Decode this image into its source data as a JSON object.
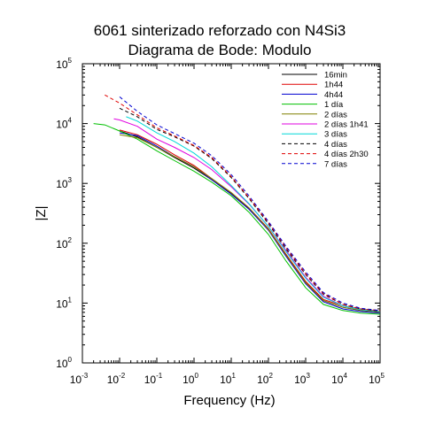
{
  "chart_data": {
    "type": "line",
    "title": "6061 sinterizado reforzado con N4Si3",
    "subtitle": "Diagrama de Bode: Modulo",
    "xlabel": "Frequency (Hz)",
    "ylabel": "|Z|",
    "xscale": "log",
    "yscale": "log",
    "xlim": [
      0.001,
      100000
    ],
    "ylim": [
      1,
      100000
    ],
    "x_ticks": [
      {
        "base": "10",
        "exp": "-3"
      },
      {
        "base": "10",
        "exp": "-2"
      },
      {
        "base": "10",
        "exp": "-1"
      },
      {
        "base": "10",
        "exp": "0"
      },
      {
        "base": "10",
        "exp": "1"
      },
      {
        "base": "10",
        "exp": "2"
      },
      {
        "base": "10",
        "exp": "3"
      },
      {
        "base": "10",
        "exp": "4"
      },
      {
        "base": "10",
        "exp": "5"
      }
    ],
    "y_ticks": [
      {
        "base": "10",
        "exp": "0"
      },
      {
        "base": "10",
        "exp": "1"
      },
      {
        "base": "10",
        "exp": "2"
      },
      {
        "base": "10",
        "exp": "3"
      },
      {
        "base": "10",
        "exp": "4"
      },
      {
        "base": "10",
        "exp": "5"
      }
    ],
    "grid": false,
    "legend_position": "top-right",
    "series": [
      {
        "name": "16min",
        "color": "#000000",
        "dash": "solid",
        "x": [
          0.01,
          0.03,
          0.1,
          0.3,
          1,
          3,
          10,
          30,
          100,
          300,
          1000,
          3000,
          10000,
          30000,
          100000
        ],
        "y": [
          7500,
          6000,
          4000,
          2700,
          1800,
          1150,
          680,
          380,
          170,
          62,
          22,
          11,
          8.5,
          7.5,
          7
        ]
      },
      {
        "name": "1h44",
        "color": "#e00000",
        "dash": "solid",
        "x": [
          0.01,
          0.03,
          0.1,
          0.3,
          1,
          3,
          10,
          30,
          100,
          300,
          1000,
          3000,
          10000,
          30000,
          100000
        ],
        "y": [
          7800,
          6500,
          4500,
          3000,
          2000,
          1200,
          700,
          390,
          175,
          65,
          23,
          11.5,
          9,
          8,
          7.3
        ]
      },
      {
        "name": "4h44",
        "color": "#0000d0",
        "dash": "solid",
        "x": [
          0.01,
          0.03,
          0.1,
          0.3,
          1,
          3,
          10,
          30,
          100,
          300,
          1000,
          3000,
          10000,
          30000,
          100000
        ],
        "y": [
          7000,
          6300,
          4200,
          2800,
          1900,
          1150,
          660,
          370,
          165,
          60,
          21,
          10.5,
          8,
          7.2,
          6.8
        ]
      },
      {
        "name": "1 día",
        "color": "#00c000",
        "dash": "solid",
        "x": [
          0.002,
          0.004,
          0.01,
          0.03,
          0.1,
          0.3,
          1,
          3,
          10,
          30,
          100,
          300,
          1000,
          3000,
          10000,
          30000,
          100000
        ],
        "y": [
          10000,
          9500,
          7500,
          5500,
          3500,
          2400,
          1600,
          1050,
          620,
          330,
          140,
          50,
          18,
          9.5,
          7.5,
          6.8,
          6.5
        ]
      },
      {
        "name": "2 días",
        "color": "#808000",
        "dash": "solid",
        "x": [
          0.01,
          0.03,
          0.1,
          0.3,
          1,
          3,
          10,
          30,
          100,
          300,
          1000,
          3000,
          10000,
          30000,
          100000
        ],
        "y": [
          6500,
          5800,
          4000,
          2800,
          1900,
          1200,
          700,
          390,
          170,
          63,
          22,
          11,
          8.5,
          7.6,
          7
        ]
      },
      {
        "name": "2 días 1h41",
        "color": "#e000e0",
        "dash": "solid",
        "x": [
          0.007,
          0.01,
          0.03,
          0.1,
          0.3,
          1,
          3,
          10,
          30,
          100,
          300,
          1000,
          3000,
          10000,
          30000,
          100000
        ],
        "y": [
          12000,
          11500,
          9000,
          5500,
          4000,
          2700,
          1700,
          880,
          450,
          190,
          75,
          27,
          13,
          9,
          7.8,
          7.2
        ]
      },
      {
        "name": "3 días",
        "color": "#00d8d8",
        "dash": "solid",
        "x": [
          0.015,
          0.03,
          0.1,
          0.3,
          1,
          3,
          10,
          30,
          100,
          300,
          1000,
          3000,
          10000,
          30000,
          100000
        ],
        "y": [
          13000,
          11000,
          7000,
          5000,
          3200,
          1900,
          920,
          460,
          190,
          72,
          26,
          12.5,
          9,
          7.8,
          7.2
        ]
      },
      {
        "name": "4 días",
        "color": "#000000",
        "dash": "dashed",
        "x": [
          0.01,
          0.03,
          0.1,
          0.3,
          1,
          3,
          10,
          30,
          100,
          300,
          1000,
          3000,
          10000,
          30000,
          100000
        ],
        "y": [
          18000,
          13000,
          8000,
          6000,
          4200,
          2600,
          1250,
          560,
          210,
          80,
          30,
          14,
          9.5,
          8,
          7.3
        ]
      },
      {
        "name": "4 días 2h30",
        "color": "#e00000",
        "dash": "dashed",
        "x": [
          0.004,
          0.01,
          0.03,
          0.1,
          0.3,
          1,
          3,
          10,
          30,
          100,
          300,
          1000,
          3000,
          10000,
          30000,
          100000
        ],
        "y": [
          30000,
          22000,
          14000,
          8500,
          6200,
          4300,
          2700,
          1300,
          580,
          220,
          85,
          31,
          14.5,
          9.5,
          8,
          7.5
        ]
      },
      {
        "name": "7 días",
        "color": "#0000d0",
        "dash": "dashed",
        "x": [
          0.01,
          0.03,
          0.1,
          0.3,
          1,
          3,
          10,
          30,
          100,
          300,
          1000,
          3000,
          10000,
          30000,
          100000
        ],
        "y": [
          28000,
          16000,
          9500,
          6800,
          4700,
          2900,
          1400,
          620,
          230,
          88,
          33,
          15,
          10,
          8.2,
          7.5
        ]
      }
    ]
  }
}
